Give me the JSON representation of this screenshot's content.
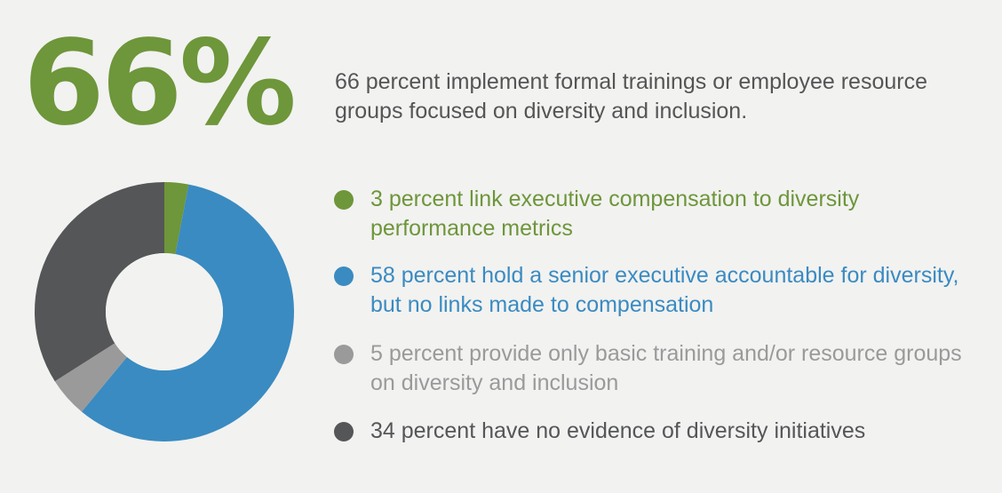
{
  "headline": {
    "stat": "66%",
    "text": "66 percent implement formal trainings or employee resource groups focused on diversity and inclusion."
  },
  "colors": {
    "green": "#6e963a",
    "blue": "#3a8bc1",
    "lightgray": "#9a9a9a",
    "darkgray": "#555658",
    "text": "#555555",
    "donut_hole": "#f2f2f1"
  },
  "chart_data": {
    "type": "pie",
    "donut": true,
    "start": "top",
    "direction": "clockwise",
    "categories": [
      "3 percent link executive compensation to diversity performance metrics",
      "58 percent hold a senior executive accountable for diversity, but no links made to compensation",
      "5 percent provide only basic training and/or resource groups on diversity and inclusion",
      "34 percent have no evidence of diversity initiatives"
    ],
    "values": [
      3,
      58,
      5,
      34
    ],
    "colors": [
      "#6e963a",
      "#3a8bc1",
      "#9a9a9a",
      "#555658"
    ]
  }
}
